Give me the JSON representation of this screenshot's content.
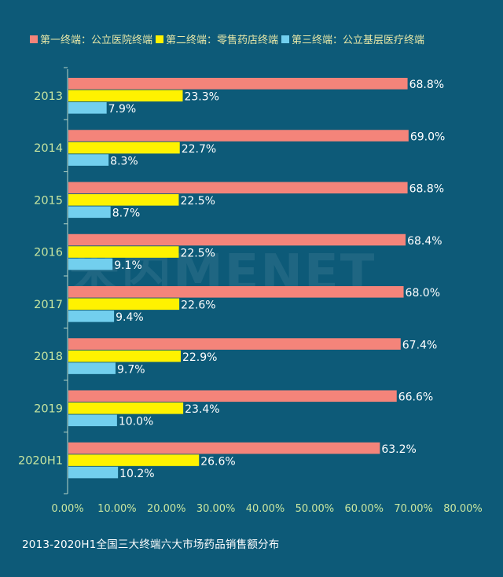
{
  "chart_data": {
    "type": "bar",
    "orientation": "horizontal",
    "categories": [
      "2013",
      "2014",
      "2015",
      "2016",
      "2017",
      "2018",
      "2019",
      "2020H1"
    ],
    "series": [
      {
        "name": "第一终端：公立医院终端",
        "color": "#f4847a",
        "values": [
          68.8,
          69.0,
          68.8,
          68.4,
          68.0,
          67.4,
          66.6,
          63.2
        ]
      },
      {
        "name": "第二终端：零售药店终端",
        "color": "#fff200",
        "values": [
          23.3,
          22.7,
          22.5,
          22.5,
          22.6,
          22.9,
          23.4,
          26.6
        ]
      },
      {
        "name": "第三终端：公立基层医疗终端",
        "color": "#72cfee",
        "values": [
          7.9,
          8.3,
          8.7,
          9.1,
          9.4,
          9.7,
          10.0,
          10.2
        ]
      }
    ],
    "value_labels": [
      [
        "68.8%",
        "23.3%",
        "7.9%"
      ],
      [
        "69.0%",
        "22.7%",
        "8.3%"
      ],
      [
        "68.8%",
        "22.5%",
        "8.7%"
      ],
      [
        "68.4%",
        "22.5%",
        "9.1%"
      ],
      [
        "68.0%",
        "22.6%",
        "9.4%"
      ],
      [
        "67.4%",
        "22.9%",
        "9.7%"
      ],
      [
        "66.6%",
        "23.4%",
        "10.0%"
      ],
      [
        "63.2%",
        "26.6%",
        "10.2%"
      ]
    ],
    "xlim": [
      0,
      80
    ],
    "xticks": [
      "0.00%",
      "10.00%",
      "20.00%",
      "30.00%",
      "40.00%",
      "50.00%",
      "60.00%",
      "70.00%",
      "80.00%"
    ],
    "grid": false,
    "legend_position": "top"
  },
  "caption": "2013-2020H1全国三大终端六大市场药品销售额分布",
  "watermark": "米内MENET",
  "colors": {
    "background": "#0d5a78",
    "axis_label": "#c8e6a0",
    "value_label": "#ffffff"
  }
}
